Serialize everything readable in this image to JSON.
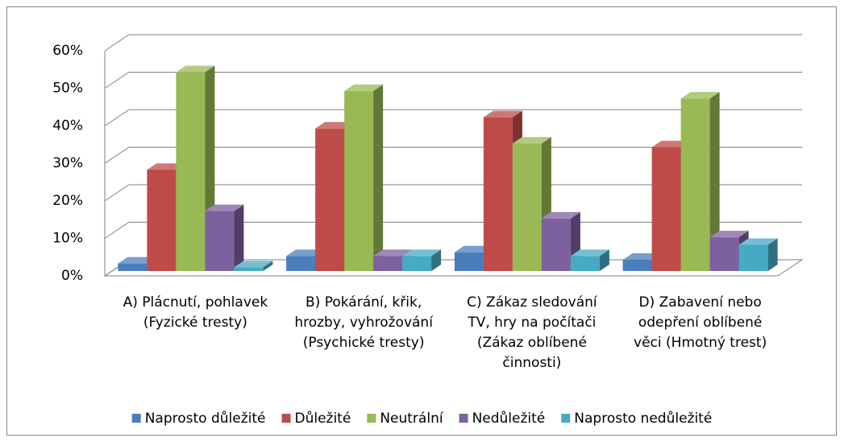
{
  "chart_data": {
    "type": "bar3d",
    "categories": [
      "A) Plácnutí, pohlavek (Fyzické tresty)",
      "B) Pokárání, křik, hrozby, vyhrožování (Psychické tresty)",
      "C) Zákaz sledování TV, hry na počítači (Zákaz oblíbené činnosti)",
      "D) Zabavení nebo odepření oblíbené věci (Hmotný trest)"
    ],
    "series": [
      {
        "name": "Naprosto důležité",
        "color": "#4a7ebb",
        "values": [
          2,
          4,
          5,
          3
        ]
      },
      {
        "name": "Důležité",
        "color": "#be4b48",
        "values": [
          27,
          38,
          41,
          33
        ]
      },
      {
        "name": "Neutrální",
        "color": "#98b954",
        "values": [
          53,
          48,
          34,
          46
        ]
      },
      {
        "name": "Nedůležité",
        "color": "#7d60a0",
        "values": [
          16,
          4,
          14,
          9
        ]
      },
      {
        "name": "Naprosto nedůležité",
        "color": "#46aac5",
        "values": [
          1,
          4,
          4,
          7
        ]
      }
    ],
    "ylim": [
      0,
      60
    ],
    "yticks": [
      {
        "value": 0,
        "label": "0%"
      },
      {
        "value": 10,
        "label": "10%"
      },
      {
        "value": 20,
        "label": "20%"
      },
      {
        "value": 30,
        "label": "30%"
      },
      {
        "value": 40,
        "label": "40%"
      },
      {
        "value": 50,
        "label": "50%"
      },
      {
        "value": 60,
        "label": "60%"
      }
    ],
    "grid": true,
    "legend": "bottom"
  }
}
